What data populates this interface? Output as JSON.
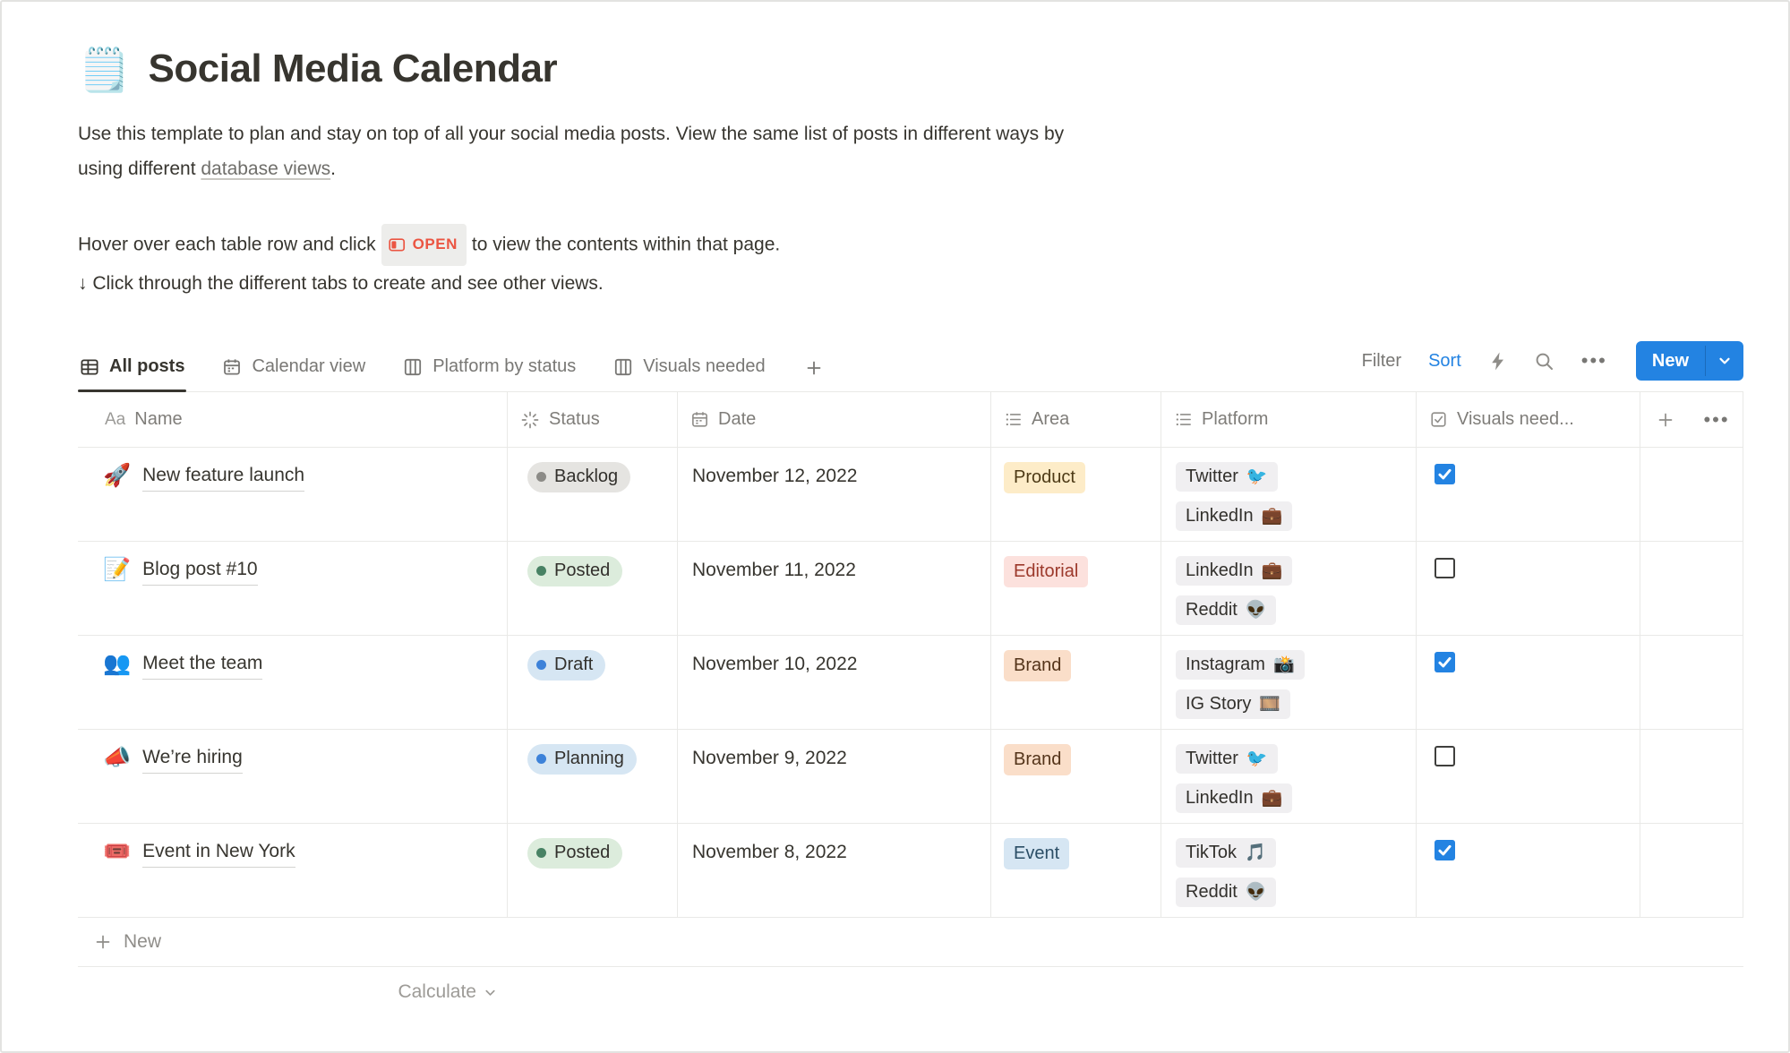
{
  "page": {
    "icon": "🗒️",
    "title": "Social Media Calendar",
    "intro": {
      "before_link": "Use this template to plan and stay on top of all your social media posts. View the same list of posts in different ways by using different ",
      "link": "database views",
      "after_link": "."
    },
    "hint": {
      "before_badge": "Hover over each table row and click",
      "badge_label": "OPEN",
      "after_badge": "to view the contents within that page.",
      "line2": "↓ Click through the different tabs to create and see other views."
    }
  },
  "toolbar": {
    "tabs": [
      {
        "label": "All posts",
        "icon": "table-icon",
        "active": true
      },
      {
        "label": "Calendar view",
        "icon": "calendar-icon",
        "active": false
      },
      {
        "label": "Platform by status",
        "icon": "board-icon",
        "active": false
      },
      {
        "label": "Visuals needed",
        "icon": "board-icon",
        "active": false
      }
    ],
    "filter_label": "Filter",
    "sort_label": "Sort",
    "more_glyph": "•••",
    "new_button_label": "New"
  },
  "table": {
    "columns": [
      {
        "key": "name",
        "label": "Name",
        "icon": "text-icon",
        "icon_glyph": "Aa"
      },
      {
        "key": "status",
        "label": "Status",
        "icon": "status-burst-icon"
      },
      {
        "key": "date",
        "label": "Date",
        "icon": "calendar-icon"
      },
      {
        "key": "area",
        "label": "Area",
        "icon": "list-icon"
      },
      {
        "key": "platform",
        "label": "Platform",
        "icon": "list-icon"
      },
      {
        "key": "visuals",
        "label": "Visuals need...",
        "icon": "checkbox-icon"
      }
    ],
    "rows": [
      {
        "icon": "🚀",
        "name": "New feature launch",
        "status": {
          "label": "Backlog",
          "color": "gray"
        },
        "date": "November 12, 2022",
        "area": {
          "label": "Product",
          "color": "yellow"
        },
        "platforms": [
          {
            "label": "Twitter",
            "emoji": "🐦"
          },
          {
            "label": "LinkedIn",
            "emoji": "💼"
          }
        ],
        "visuals_needed": true
      },
      {
        "icon": "📝",
        "name": "Blog post #10",
        "status": {
          "label": "Posted",
          "color": "green"
        },
        "date": "November 11, 2022",
        "area": {
          "label": "Editorial",
          "color": "red"
        },
        "platforms": [
          {
            "label": "LinkedIn",
            "emoji": "💼"
          },
          {
            "label": "Reddit",
            "emoji": "👽"
          }
        ],
        "visuals_needed": false
      },
      {
        "icon": "👥",
        "name": "Meet the team",
        "status": {
          "label": "Draft",
          "color": "blue"
        },
        "date": "November 10, 2022",
        "area": {
          "label": "Brand",
          "color": "orange"
        },
        "platforms": [
          {
            "label": "Instagram",
            "emoji": "📸"
          },
          {
            "label": "IG Story",
            "emoji": "🎞️"
          }
        ],
        "visuals_needed": true
      },
      {
        "icon": "📣",
        "name": "We’re hiring",
        "status": {
          "label": "Planning",
          "color": "blue"
        },
        "date": "November 9, 2022",
        "area": {
          "label": "Brand",
          "color": "orange"
        },
        "platforms": [
          {
            "label": "Twitter",
            "emoji": "🐦"
          },
          {
            "label": "LinkedIn",
            "emoji": "💼"
          }
        ],
        "visuals_needed": false
      },
      {
        "icon": "🎟️",
        "name": "Event in New York",
        "status": {
          "label": "Posted",
          "color": "green"
        },
        "date": "November 8, 2022",
        "area": {
          "label": "Event",
          "color": "blue"
        },
        "platforms": [
          {
            "label": "TikTok",
            "emoji": "🎵"
          },
          {
            "label": "Reddit",
            "emoji": "👽"
          }
        ],
        "visuals_needed": true
      }
    ],
    "new_row_label": "New",
    "calculate_label": "Calculate"
  },
  "colors": {
    "accent_blue": "#2383e2",
    "open_red": "#eb5542",
    "text": "#37352f",
    "muted": "#787774",
    "border": "#e9e9e7"
  }
}
